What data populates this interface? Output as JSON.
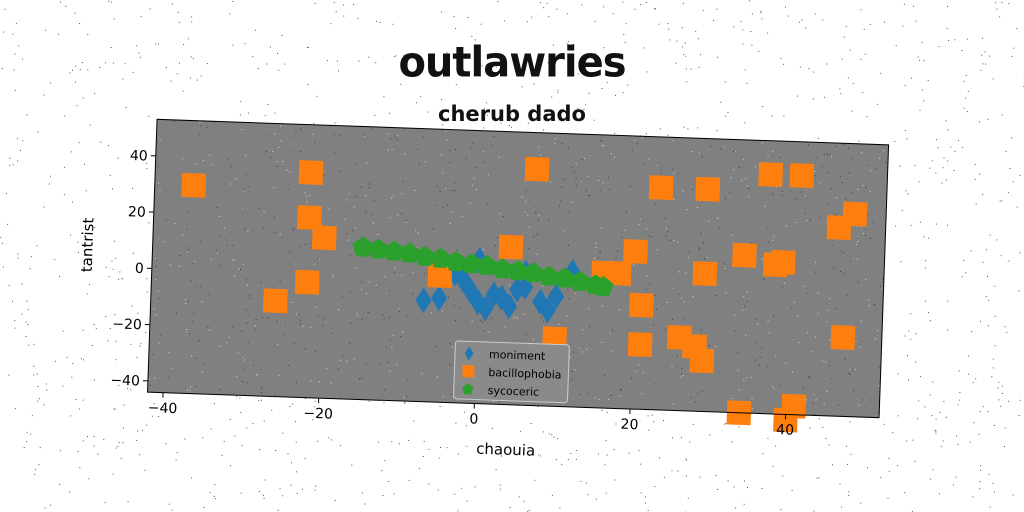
{
  "chart_data": {
    "type": "scatter",
    "title": "outlawries",
    "subtitle": "cherub dado",
    "xlabel": "chaouia",
    "ylabel": "tantrist",
    "xlim": [
      -42,
      52
    ],
    "ylim": [
      -44,
      53
    ],
    "xticks": [
      -40,
      -20,
      0,
      20,
      40
    ],
    "yticks": [
      -40,
      -20,
      0,
      20,
      40
    ],
    "xtick_labels": [
      "−40",
      "−20",
      "0",
      "20",
      "40"
    ],
    "ytick_labels": [
      "−40",
      "−20",
      "0",
      "20",
      "40"
    ],
    "grid": false,
    "legend_position": "bottom-center",
    "background": "#808080",
    "series": [
      {
        "name": "moniment",
        "marker": "diamond",
        "color": "#1f77b4",
        "points": [
          [
            -7,
            -8
          ],
          [
            -5,
            -7
          ],
          [
            -3,
            2
          ],
          [
            -2,
            0
          ],
          [
            -1,
            -4
          ],
          [
            0,
            -8
          ],
          [
            0,
            7
          ],
          [
            1,
            -10
          ],
          [
            2,
            -5
          ],
          [
            3,
            -6
          ],
          [
            4,
            -9
          ],
          [
            5,
            -3
          ],
          [
            6,
            -2
          ],
          [
            6,
            3
          ],
          [
            8,
            -7
          ],
          [
            9,
            -10
          ],
          [
            10,
            -5
          ],
          [
            12,
            4
          ]
        ]
      },
      {
        "name": "bacillophobia",
        "marker": "square",
        "color": "#ff7f0e",
        "points": [
          [
            -37,
            30
          ],
          [
            -26,
            -10
          ],
          [
            -22,
            -3
          ],
          [
            -22,
            36
          ],
          [
            -22,
            20
          ],
          [
            -20,
            13
          ],
          [
            -5,
            1
          ],
          [
            4,
            12
          ],
          [
            5,
            -28
          ],
          [
            7,
            40
          ],
          [
            10,
            -20
          ],
          [
            16,
            4
          ],
          [
            18,
            4
          ],
          [
            20,
            12
          ],
          [
            21,
            -7
          ],
          [
            21,
            -21
          ],
          [
            23,
            35
          ],
          [
            26,
            -18
          ],
          [
            28,
            -21
          ],
          [
            29,
            35
          ],
          [
            29,
            -26
          ],
          [
            29,
            5
          ],
          [
            34,
            12
          ],
          [
            34,
            -44
          ],
          [
            37,
            41
          ],
          [
            38,
            9
          ],
          [
            39,
            10
          ],
          [
            40,
            -46
          ],
          [
            41,
            41
          ],
          [
            41,
            -41
          ],
          [
            46,
            23
          ],
          [
            48,
            28
          ],
          [
            47,
            -16
          ]
        ]
      },
      {
        "name": "sycoceric",
        "marker": "pentagon",
        "color": "#2ca02c",
        "points": [
          [
            -15,
            10
          ],
          [
            -13,
            9.5
          ],
          [
            -11,
            9
          ],
          [
            -9,
            8.5
          ],
          [
            -7,
            7.5
          ],
          [
            -5,
            7
          ],
          [
            -3,
            6
          ],
          [
            -1,
            5.5
          ],
          [
            1,
            5
          ],
          [
            3,
            4
          ],
          [
            5,
            3.5
          ],
          [
            7,
            3
          ],
          [
            9,
            2
          ],
          [
            11,
            1.5
          ],
          [
            13,
            0.5
          ],
          [
            15,
            -0.5
          ],
          [
            16,
            -1
          ]
        ]
      }
    ]
  }
}
